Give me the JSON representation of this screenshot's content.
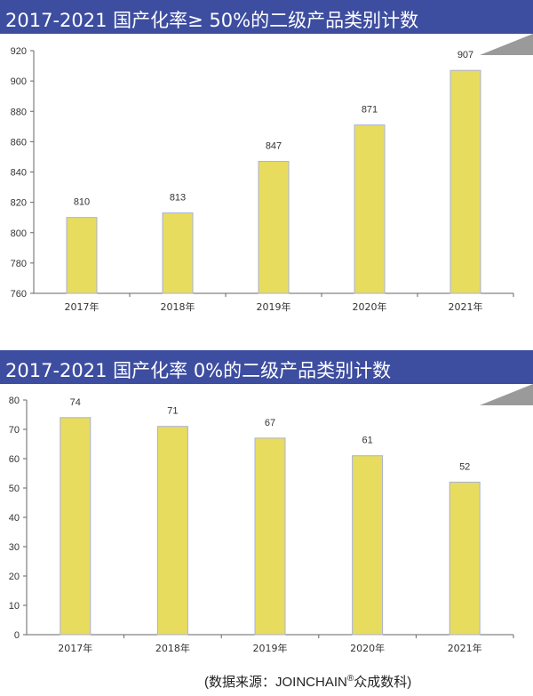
{
  "charts": [
    {
      "title": "2017-2021 国产化率≥ 50%的二级产品类别计数",
      "chart_data": {
        "type": "bar",
        "title": "2017-2021 国产化率≥ 50%的二级产品类别计数",
        "categories": [
          "2017年",
          "2018年",
          "2019年",
          "2020年",
          "2021年"
        ],
        "values": [
          810,
          813,
          847,
          871,
          907
        ],
        "ylim": [
          760,
          920
        ],
        "yticks": [
          760,
          780,
          800,
          820,
          840,
          860,
          880,
          900,
          920
        ],
        "bar_color": "#e8dc5e",
        "grid": false
      }
    },
    {
      "title": "2017-2021 国产化率 0%的二级产品类别计数",
      "chart_data": {
        "type": "bar",
        "title": "2017-2021 国产化率 0%的二级产品类别计数",
        "categories": [
          "2017年",
          "2018年",
          "2019年",
          "2020年",
          "2021年"
        ],
        "values": [
          74,
          71,
          67,
          61,
          52
        ],
        "ylim": [
          0,
          80
        ],
        "yticks": [
          0,
          10,
          20,
          30,
          40,
          50,
          60,
          70,
          80
        ],
        "bar_color": "#e8dc5e",
        "grid": false
      }
    }
  ],
  "source_prefix": "(数据来源：JOINCHAIN",
  "source_mark": "®",
  "source_suffix": "众成数科)",
  "colors": {
    "title_bar": "#3d4da0",
    "bar": "#e8dc5e",
    "bar_edge": "#a8b0d8",
    "axis": "#666666"
  }
}
